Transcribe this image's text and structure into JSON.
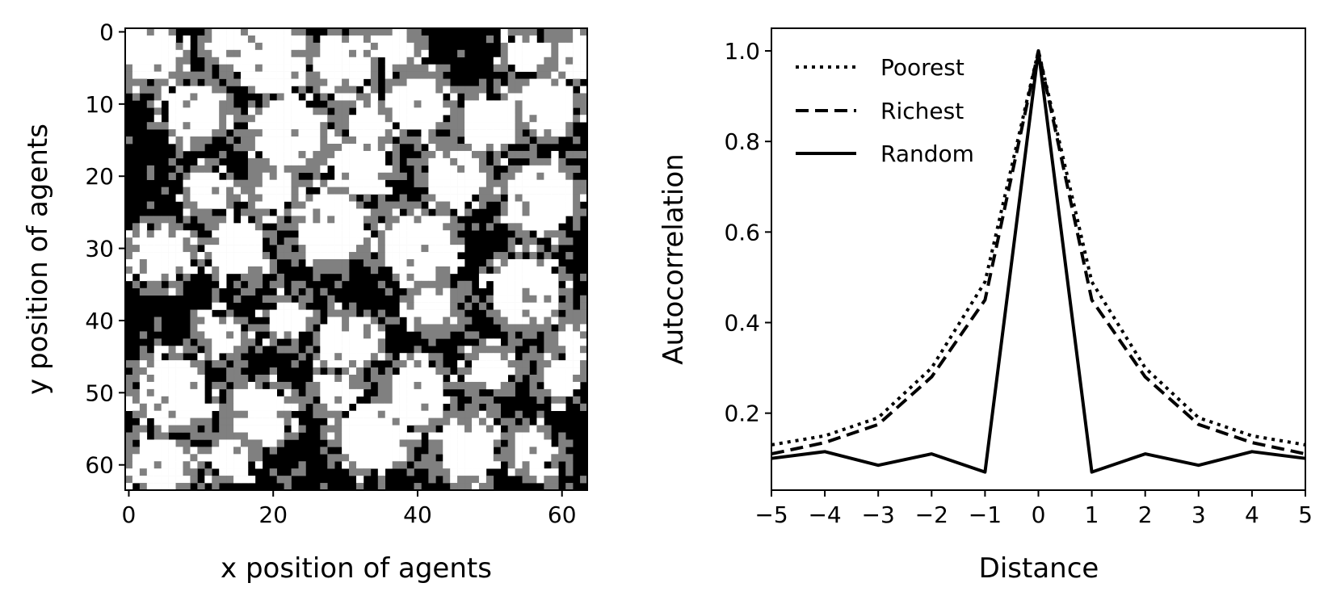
{
  "chart_data": [
    {
      "type": "heatmap",
      "xlabel": "x position of agents",
      "ylabel": "y position of agents",
      "xlim": [
        0,
        63
      ],
      "ylim": [
        0,
        63
      ],
      "x_ticks": [
        "0",
        "20",
        "40",
        "60"
      ],
      "y_ticks": [
        "0",
        "10",
        "20",
        "30",
        "40",
        "50",
        "60"
      ],
      "grid_size": 64,
      "colors": {
        "level_0": "#000000",
        "level_1": "#808080",
        "level_2": "#ffffff"
      },
      "clusters": [
        [
          3,
          3,
          4
        ],
        [
          14,
          2,
          3
        ],
        [
          20,
          4,
          5
        ],
        [
          30,
          4,
          4
        ],
        [
          37,
          2,
          3
        ],
        [
          55,
          3,
          3
        ],
        [
          62,
          4,
          3
        ],
        [
          9,
          11,
          4
        ],
        [
          22,
          14,
          5
        ],
        [
          33,
          13,
          3
        ],
        [
          40,
          10,
          4
        ],
        [
          50,
          13,
          4
        ],
        [
          58,
          10,
          4
        ],
        [
          11,
          22,
          3
        ],
        [
          20,
          22,
          3
        ],
        [
          32,
          19,
          4
        ],
        [
          45,
          20,
          4
        ],
        [
          57,
          23,
          5
        ],
        [
          4,
          31,
          4
        ],
        [
          15,
          30,
          4
        ],
        [
          28,
          27,
          5
        ],
        [
          40,
          30,
          5
        ],
        [
          55,
          36,
          5
        ],
        [
          13,
          42,
          3
        ],
        [
          22,
          40,
          3
        ],
        [
          30,
          43,
          4
        ],
        [
          42,
          38,
          3
        ],
        [
          50,
          47,
          3
        ],
        [
          62,
          43,
          3
        ],
        [
          6,
          50,
          5
        ],
        [
          18,
          53,
          4
        ],
        [
          29,
          50,
          3
        ],
        [
          40,
          50,
          4
        ],
        [
          60,
          48,
          3
        ],
        [
          4,
          60,
          4
        ],
        [
          14,
          59,
          3
        ],
        [
          34,
          56,
          5
        ],
        [
          47,
          58,
          4
        ],
        [
          56,
          58,
          3
        ]
      ]
    },
    {
      "type": "line",
      "xlabel": "Distance",
      "ylabel": "Autocorrelation",
      "xlim": [
        -5,
        5
      ],
      "ylim": [
        0.03,
        1.05
      ],
      "x": [
        -5,
        -4,
        -3,
        -2,
        -1,
        0,
        1,
        2,
        3,
        4,
        5
      ],
      "x_ticks": [
        "−5",
        "−4",
        "−3",
        "−2",
        "−1",
        "0",
        "1",
        "2",
        "3",
        "4",
        "5"
      ],
      "y_ticks": [
        "0.2",
        "0.4",
        "0.6",
        "0.8",
        "1.0"
      ],
      "legend_position": "top-left",
      "series": [
        {
          "name": "Poorest",
          "style": "dotted",
          "values": [
            0.13,
            0.15,
            0.19,
            0.3,
            0.49,
            1.0,
            0.49,
            0.3,
            0.19,
            0.15,
            0.13
          ]
        },
        {
          "name": "Richest",
          "style": "dashed",
          "values": [
            0.11,
            0.135,
            0.175,
            0.28,
            0.45,
            1.0,
            0.45,
            0.28,
            0.175,
            0.135,
            0.11
          ]
        },
        {
          "name": "Random",
          "style": "solid",
          "values": [
            0.1,
            0.115,
            0.085,
            0.11,
            0.07,
            1.0,
            0.07,
            0.11,
            0.085,
            0.115,
            0.1
          ]
        }
      ]
    }
  ]
}
